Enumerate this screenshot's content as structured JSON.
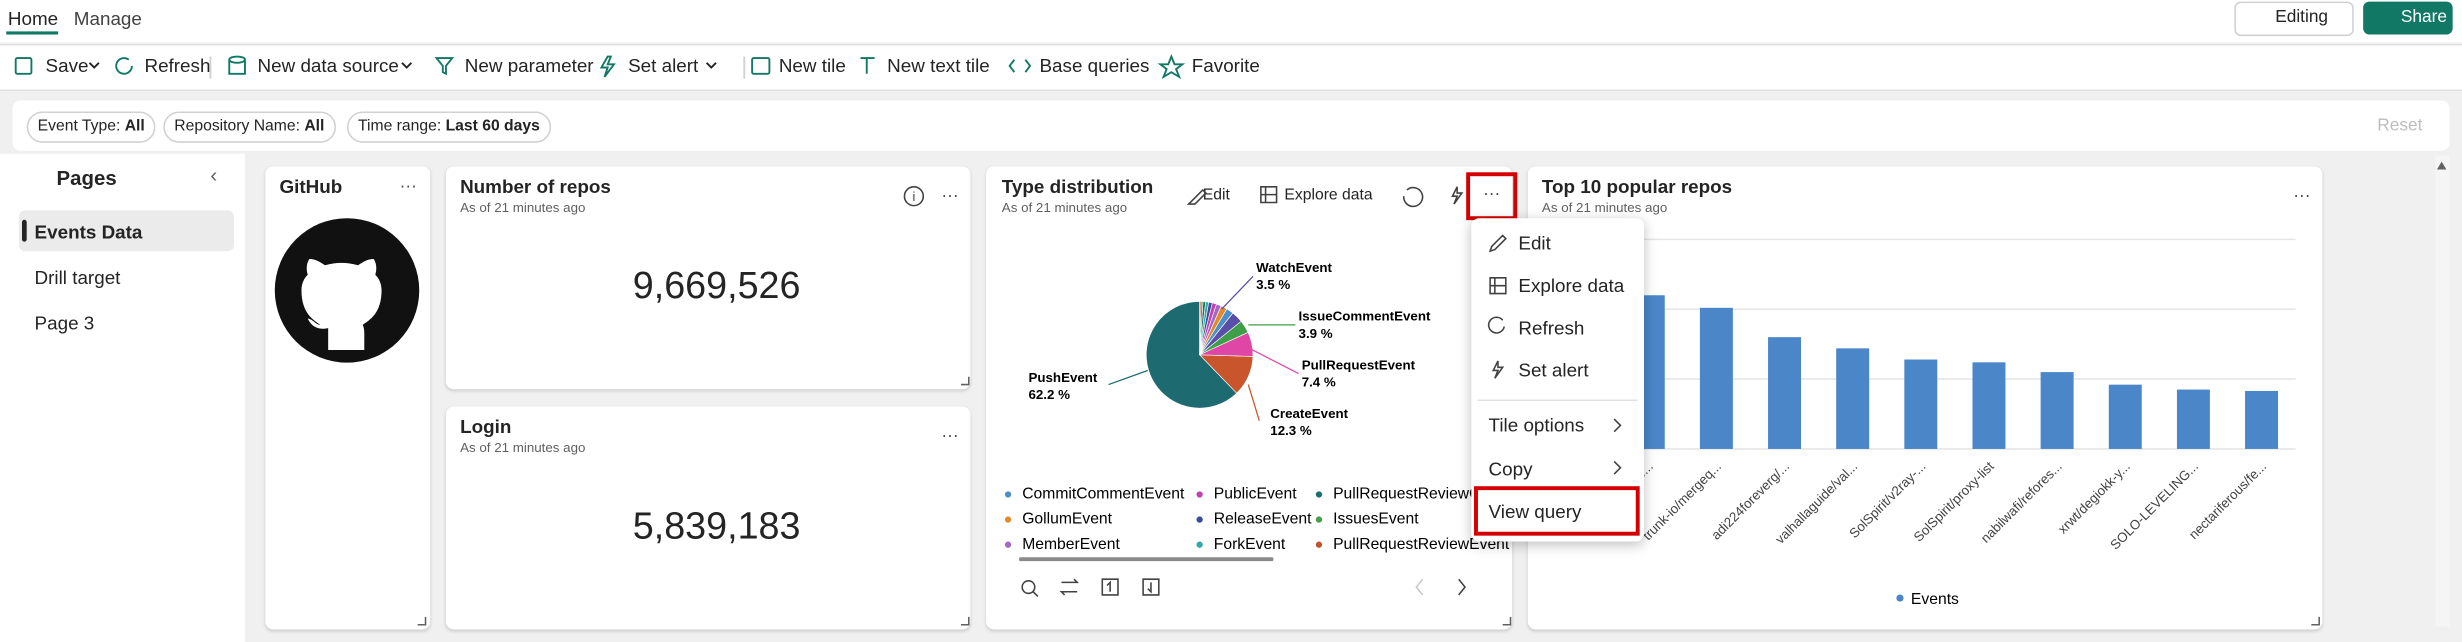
{
  "tabs": [
    "Home",
    "Manage"
  ],
  "toolbar": [
    "Save",
    "Refresh",
    "New data source",
    "New parameter",
    "Set alert",
    "New tile",
    "New text tile",
    "Base queries",
    "Favorite"
  ],
  "header_buttons": [
    "Editing",
    "Share"
  ],
  "filters": [
    {
      "label": "Event Type:",
      "value": "All"
    },
    {
      "label": "Repository Name:",
      "value": "All"
    },
    {
      "label": "Time range:",
      "value": "Last 60 days"
    }
  ],
  "reset": "Reset",
  "pages": {
    "title": "Pages",
    "items": [
      "Events Data",
      "Drill target",
      "Page 3"
    ]
  },
  "tiles": {
    "github": {
      "title": "GitHub"
    },
    "repos": {
      "title": "Number of repos",
      "subtitle": "As of 21 minutes ago",
      "value": "9,669,526"
    },
    "login": {
      "title": "Login",
      "subtitle": "As of 21 minutes ago",
      "value": "5,839,183"
    },
    "type_distribution": {
      "title": "Type distribution",
      "subtitle": "As of 21 minutes ago",
      "actions": [
        "Edit",
        "Explore data"
      ]
    },
    "top_repos": {
      "title": "Top 10 popular repos",
      "subtitle": "As of 21 minutes ago"
    }
  },
  "context_menu": [
    "Edit",
    "Explore data",
    "Refresh",
    "Set alert",
    "Tile options",
    "Copy",
    "View query"
  ],
  "chart_data": [
    {
      "type": "pie",
      "categories": [
        "PushEvent",
        "CreateEvent",
        "PullRequestEvent",
        "IssueCommentEvent",
        "WatchEvent",
        "CommitCommentEvent",
        "GollumEvent",
        "MemberEvent",
        "PublicEvent",
        "ReleaseEvent",
        "ForkEvent",
        "PullRequestReviewCo",
        "IssuesEvent",
        "PullRequestReviewEvent"
      ],
      "values": [
        62.2,
        12.3,
        7.4,
        3.9,
        3.5,
        2.2,
        1.9,
        1.5,
        1.3,
        1.1,
        0.9,
        0.8,
        0.6,
        0.4
      ],
      "value_labels": [
        "62.2 %",
        "12.3 %",
        "7.4 %",
        "3.9 %",
        "3.5 %",
        null,
        null,
        null,
        null,
        null,
        null,
        null,
        null,
        null
      ],
      "colors": [
        "#1d6b70",
        "#c9552c",
        "#e046a6",
        "#3f9e48",
        "#5a4fa8",
        "#4a8fc7",
        "#e38a2d",
        "#a467c4",
        "#c041b0",
        "#3b4d94",
        "#2fa8a8",
        "#1b6e6e",
        "#43a047",
        "#c4512b"
      ]
    },
    {
      "type": "bar",
      "categories": [
        "free...",
        "trunk-io/mergeq...",
        "adi224foreverg/...",
        "valhallaguide/val...",
        "SolSpirit/v2ray-...",
        "SolSpirit/proxy-list",
        "nabilwafi/refores...",
        "xrwt/degiokk-y...",
        "SOLO-LEVELING...",
        "nectariferous/fe..."
      ],
      "series": [
        {
          "name": "Events",
          "color": "#4a86c8",
          "values": [
            2.2,
            2.02,
            1.6,
            1.44,
            1.28,
            1.24,
            1.1,
            0.92,
            0.85,
            0.83
          ]
        }
      ],
      "ylim": [
        0,
        3
      ],
      "yticks": [
        0,
        1,
        2,
        3
      ],
      "grid": true
    }
  ]
}
